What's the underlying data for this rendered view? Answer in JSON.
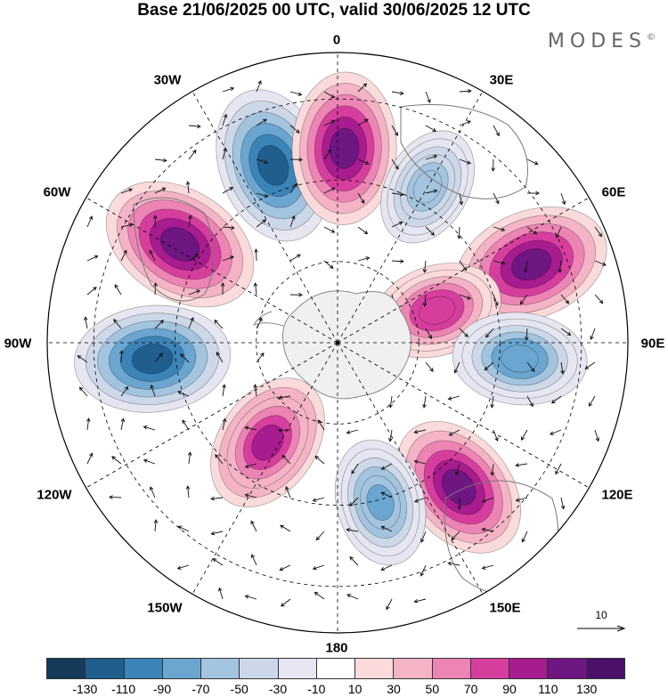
{
  "title": "Base 21/06/2025 00 UTC, valid 30/06/2025 12 UTC",
  "logo": {
    "text": "MODES",
    "mark": "©"
  },
  "longitude_labels": {
    "lon_0": "0",
    "lon_30e": "30E",
    "lon_60e": "60E",
    "lon_90e": "90E",
    "lon_120e": "120E",
    "lon_150e": "150E",
    "lon_180": "180",
    "lon_150w": "150W",
    "lon_120w": "120W",
    "lon_90w": "90W",
    "lon_60w": "60W",
    "lon_30w": "30W"
  },
  "vector_reference": {
    "label": "10"
  },
  "colorbar": {
    "colors": [
      "#163a5a",
      "#1f5e8d",
      "#3b84b8",
      "#6aa6cf",
      "#a3c4df",
      "#ccd8e8",
      "#e6e6f2",
      "#ffffff",
      "#fadada",
      "#f4b4c6",
      "#ec84b4",
      "#d63e9e",
      "#a71c8e",
      "#6e1682",
      "#4c0f6a"
    ],
    "tick_labels": [
      "-130",
      "-110",
      "-90",
      "-70",
      "-50",
      "-30",
      "-10",
      "10",
      "30",
      "50",
      "70",
      "90",
      "110",
      "130"
    ]
  },
  "map": {
    "projection": "south polar stereographic",
    "field_anomalies": [
      {
        "sign": "negative",
        "value": -120,
        "lon": -20,
        "r": 0.65
      },
      {
        "sign": "positive",
        "value": 115,
        "lon": 2,
        "r": 0.67
      },
      {
        "sign": "negative",
        "value": -70,
        "lon": 30,
        "r": 0.62
      },
      {
        "sign": "positive",
        "value": 120,
        "lon": 68,
        "r": 0.72
      },
      {
        "sign": "positive",
        "value": 85,
        "lon": 72,
        "r": 0.36
      },
      {
        "sign": "negative",
        "value": -90,
        "lon": 95,
        "r": 0.63
      },
      {
        "sign": "positive",
        "value": 110,
        "lon": 140,
        "r": 0.65
      },
      {
        "sign": "negative",
        "value": -80,
        "lon": 165,
        "r": 0.57
      },
      {
        "sign": "positive",
        "value": 100,
        "lon": -145,
        "r": 0.42
      },
      {
        "sign": "negative",
        "value": -120,
        "lon": -95,
        "r": 0.64
      },
      {
        "sign": "positive",
        "value": 125,
        "lon": -58,
        "r": 0.64
      }
    ]
  }
}
